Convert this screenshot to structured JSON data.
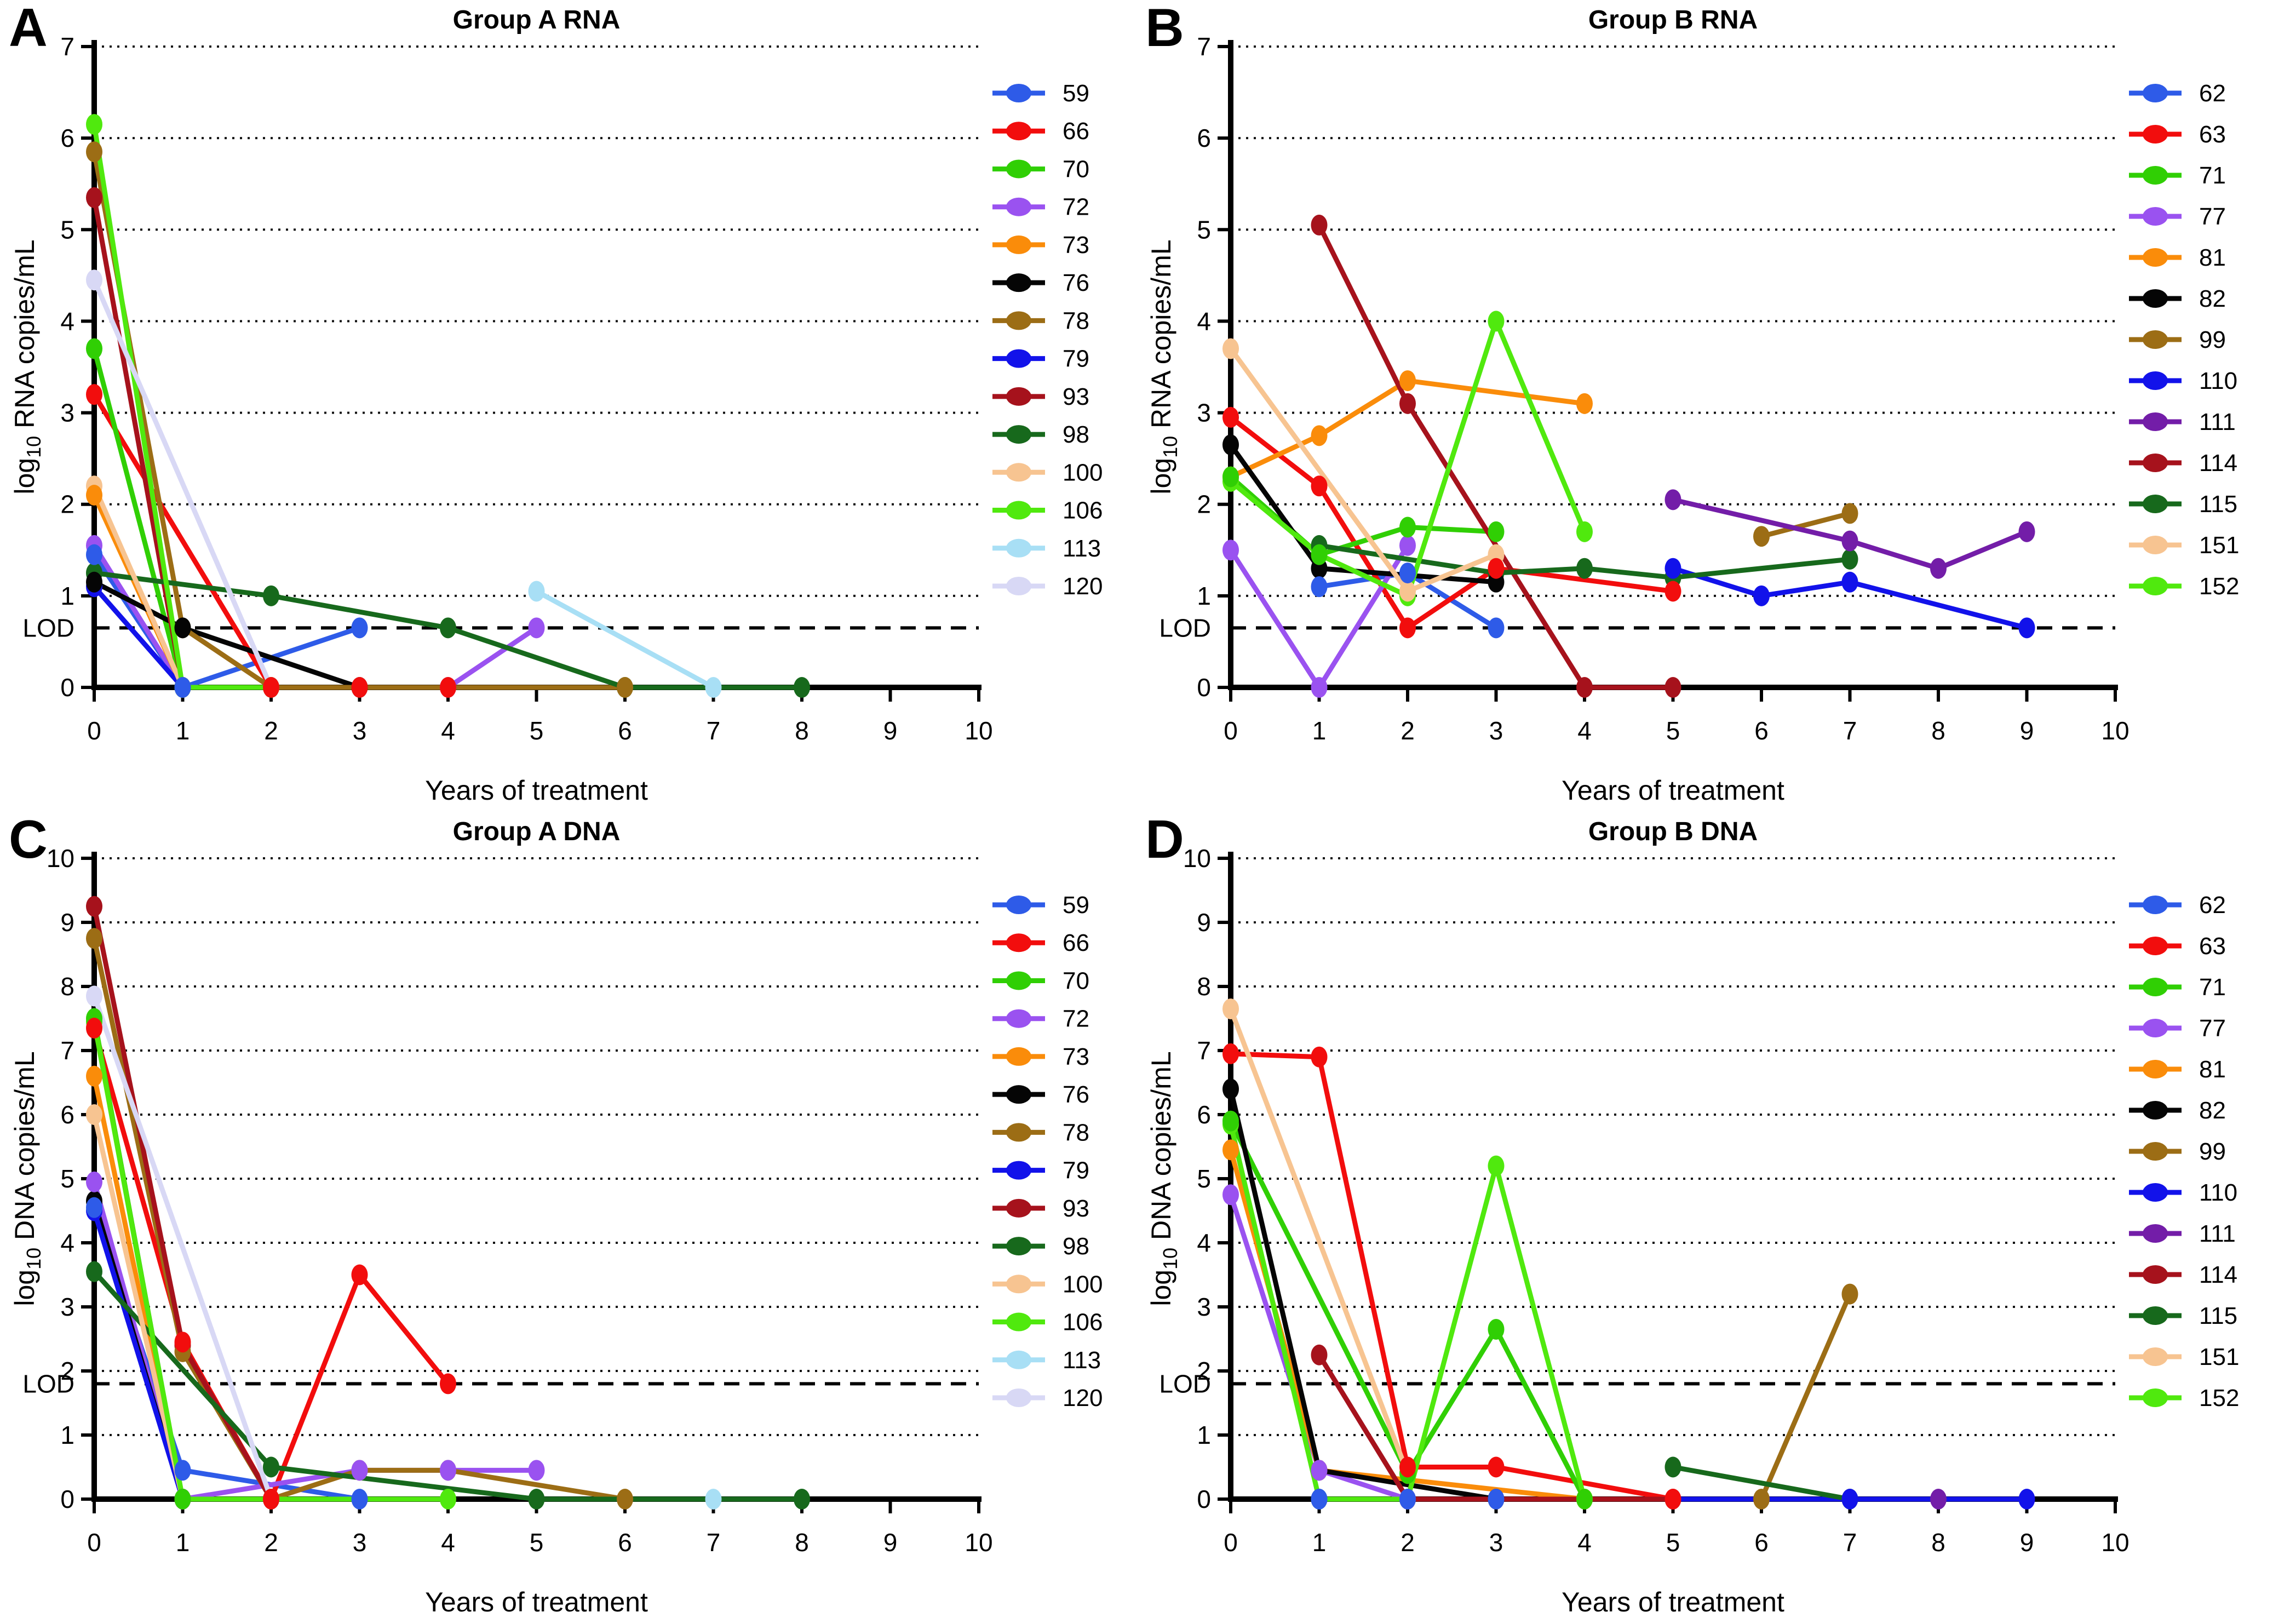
{
  "figure": {
    "lod_label": "LOD",
    "xlabel": "Years of treatment",
    "background": "#ffffff",
    "axis_color": "#000000"
  },
  "chart_data": [
    {
      "letter": "A",
      "title": "Group A RNA",
      "type": "line",
      "xlabel": "Years of treatment",
      "ylabel": {
        "prefix": "log",
        "sub": "10",
        "suffix": " RNA copies/mL"
      },
      "xlim": [
        0,
        10
      ],
      "ylim": [
        0,
        7
      ],
      "xticks": [
        0,
        1,
        2,
        3,
        4,
        5,
        6,
        7,
        8,
        9,
        10
      ],
      "yticks": [
        0,
        1,
        2,
        3,
        4,
        5,
        6,
        7
      ],
      "lod": 0.65,
      "grid": "dotted-horizontal",
      "legend_position": "right",
      "series": [
        {
          "name": "59",
          "color": "#2E5BE8",
          "points": [
            [
              0,
              1.45
            ],
            [
              1,
              0
            ],
            [
              3,
              0.65
            ]
          ]
        },
        {
          "name": "66",
          "color": "#F20D0D",
          "points": [
            [
              0,
              3.2
            ],
            [
              2,
              0
            ],
            [
              3,
              0
            ],
            [
              4,
              0
            ]
          ]
        },
        {
          "name": "70",
          "color": "#30CF04",
          "points": [
            [
              0,
              3.7
            ],
            [
              1,
              0
            ]
          ]
        },
        {
          "name": "72",
          "color": "#9A52F0",
          "points": [
            [
              0,
              1.55
            ],
            [
              1,
              0
            ],
            [
              4,
              0
            ],
            [
              5,
              0.65
            ]
          ]
        },
        {
          "name": "73",
          "color": "#FA8C0A",
          "points": [
            [
              0,
              2.1
            ],
            [
              1,
              0
            ]
          ]
        },
        {
          "name": "76",
          "color": "#050505",
          "points": [
            [
              0,
              1.15
            ],
            [
              1,
              0.65
            ],
            [
              3,
              0
            ]
          ]
        },
        {
          "name": "78",
          "color": "#9C6D15",
          "points": [
            [
              0,
              5.85
            ],
            [
              1,
              0.65
            ],
            [
              2,
              0
            ],
            [
              6,
              0
            ]
          ]
        },
        {
          "name": "79",
          "color": "#1212EA",
          "points": [
            [
              0,
              1.1
            ],
            [
              1,
              0
            ]
          ]
        },
        {
          "name": "93",
          "color": "#A6121C",
          "points": [
            [
              0,
              5.35
            ],
            [
              1,
              0
            ]
          ]
        },
        {
          "name": "98",
          "color": "#17691C",
          "points": [
            [
              0,
              1.25
            ],
            [
              2,
              1.0
            ],
            [
              4,
              0.65
            ],
            [
              6,
              0
            ],
            [
              8,
              0
            ]
          ]
        },
        {
          "name": "100",
          "color": "#F7C491",
          "points": [
            [
              0,
              2.2
            ],
            [
              1,
              0
            ]
          ]
        },
        {
          "name": "106",
          "color": "#50E90E",
          "points": [
            [
              0,
              6.15
            ],
            [
              1,
              0
            ],
            [
              2,
              0
            ]
          ]
        },
        {
          "name": "113",
          "color": "#A8DFF5",
          "points": [
            [
              5,
              1.05
            ],
            [
              7,
              0
            ]
          ]
        },
        {
          "name": "120",
          "color": "#D8D8F5",
          "points": [
            [
              0,
              4.45
            ],
            [
              2,
              0
            ]
          ]
        }
      ]
    },
    {
      "letter": "B",
      "title": "Group B RNA",
      "type": "line",
      "xlabel": "Years of treatment",
      "ylabel": {
        "prefix": "log",
        "sub": "10",
        "suffix": " RNA copies/mL"
      },
      "xlim": [
        0,
        10
      ],
      "ylim": [
        0,
        7
      ],
      "xticks": [
        0,
        1,
        2,
        3,
        4,
        5,
        6,
        7,
        8,
        9,
        10
      ],
      "yticks": [
        0,
        1,
        2,
        3,
        4,
        5,
        6,
        7
      ],
      "lod": 0.65,
      "grid": "dotted-horizontal",
      "legend_position": "right",
      "series": [
        {
          "name": "62",
          "color": "#2E5BE8",
          "points": [
            [
              1,
              1.1
            ],
            [
              2,
              1.25
            ],
            [
              3,
              0.65
            ]
          ]
        },
        {
          "name": "63",
          "color": "#F20D0D",
          "points": [
            [
              0,
              2.95
            ],
            [
              1,
              2.2
            ],
            [
              2,
              0.65
            ],
            [
              3,
              1.3
            ],
            [
              5,
              1.05
            ]
          ]
        },
        {
          "name": "71",
          "color": "#30CF04",
          "points": [
            [
              0,
              2.3
            ],
            [
              1,
              1.45
            ],
            [
              2,
              1.75
            ],
            [
              3,
              1.7
            ]
          ]
        },
        {
          "name": "77",
          "color": "#9A52F0",
          "points": [
            [
              0,
              1.5
            ],
            [
              1,
              0
            ],
            [
              2,
              1.55
            ]
          ]
        },
        {
          "name": "81",
          "color": "#FA8C0A",
          "points": [
            [
              0,
              2.3
            ],
            [
              1,
              2.75
            ],
            [
              2,
              3.35
            ],
            [
              4,
              3.1
            ]
          ]
        },
        {
          "name": "82",
          "color": "#050505",
          "points": [
            [
              0,
              2.65
            ],
            [
              1,
              1.3
            ],
            [
              3,
              1.15
            ]
          ]
        },
        {
          "name": "99",
          "color": "#9C6D15",
          "points": [
            [
              6,
              1.65
            ],
            [
              7,
              1.9
            ]
          ]
        },
        {
          "name": "110",
          "color": "#1212EA",
          "points": [
            [
              5,
              1.3
            ],
            [
              6,
              1.0
            ],
            [
              7,
              1.15
            ],
            [
              9,
              0.65
            ]
          ]
        },
        {
          "name": "111",
          "color": "#731DA8",
          "points": [
            [
              5,
              2.05
            ],
            [
              7,
              1.6
            ],
            [
              8,
              1.3
            ],
            [
              9,
              1.7
            ]
          ]
        },
        {
          "name": "114",
          "color": "#A6121C",
          "points": [
            [
              1,
              5.05
            ],
            [
              2,
              3.1
            ],
            [
              4,
              0
            ],
            [
              5,
              0
            ]
          ]
        },
        {
          "name": "115",
          "color": "#17691C",
          "points": [
            [
              1,
              1.55
            ],
            [
              3,
              1.25
            ],
            [
              4,
              1.3
            ],
            [
              5,
              1.2
            ],
            [
              7,
              1.4
            ]
          ]
        },
        {
          "name": "151",
          "color": "#F7C491",
          "points": [
            [
              0,
              3.7
            ],
            [
              2,
              1.05
            ],
            [
              3,
              1.45
            ]
          ]
        },
        {
          "name": "152",
          "color": "#50E90E",
          "points": [
            [
              0,
              2.25
            ],
            [
              1,
              1.45
            ],
            [
              2,
              1.0
            ],
            [
              3,
              4.0
            ],
            [
              4,
              1.7
            ]
          ]
        }
      ]
    },
    {
      "letter": "C",
      "title": "Group A DNA",
      "type": "line",
      "xlabel": "Years of treatment",
      "ylabel": {
        "prefix": "log",
        "sub": "10",
        "suffix": " DNA copies/mL"
      },
      "xlim": [
        0,
        10
      ],
      "ylim": [
        0,
        10
      ],
      "xticks": [
        0,
        1,
        2,
        3,
        4,
        5,
        6,
        7,
        8,
        9,
        10
      ],
      "yticks": [
        0,
        1,
        2,
        3,
        4,
        5,
        6,
        7,
        8,
        9,
        10
      ],
      "lod": 1.8,
      "grid": "dotted-horizontal",
      "legend_position": "right",
      "series": [
        {
          "name": "59",
          "color": "#2E5BE8",
          "points": [
            [
              0,
              4.55
            ],
            [
              1,
              0.45
            ],
            [
              3,
              0
            ]
          ]
        },
        {
          "name": "66",
          "color": "#F20D0D",
          "points": [
            [
              0,
              7.35
            ],
            [
              1,
              2.45
            ],
            [
              2,
              0
            ],
            [
              3,
              3.5
            ],
            [
              4,
              1.8
            ]
          ]
        },
        {
          "name": "70",
          "color": "#30CF04",
          "points": [
            [
              0,
              7.5
            ],
            [
              1,
              0
            ]
          ]
        },
        {
          "name": "72",
          "color": "#9A52F0",
          "points": [
            [
              0,
              4.95
            ],
            [
              1,
              0
            ],
            [
              3,
              0.45
            ],
            [
              4,
              0.45
            ],
            [
              5,
              0.45
            ]
          ]
        },
        {
          "name": "73",
          "color": "#FA8C0A",
          "points": [
            [
              0,
              6.6
            ],
            [
              1,
              0
            ]
          ]
        },
        {
          "name": "76",
          "color": "#050505",
          "points": [
            [
              0,
              4.65
            ],
            [
              1,
              0
            ]
          ]
        },
        {
          "name": "78",
          "color": "#9C6D15",
          "points": [
            [
              0,
              8.75
            ],
            [
              1,
              2.3
            ],
            [
              2,
              0
            ],
            [
              3,
              0.45
            ],
            [
              4,
              0.45
            ],
            [
              6,
              0
            ]
          ]
        },
        {
          "name": "79",
          "color": "#1212EA",
          "points": [
            [
              0,
              4.5
            ],
            [
              1,
              0
            ]
          ]
        },
        {
          "name": "93",
          "color": "#A6121C",
          "points": [
            [
              0,
              9.25
            ],
            [
              1,
              2.4
            ],
            [
              2,
              0
            ]
          ]
        },
        {
          "name": "98",
          "color": "#17691C",
          "points": [
            [
              0,
              3.55
            ],
            [
              2,
              0.5
            ],
            [
              5,
              0
            ],
            [
              8,
              0
            ]
          ]
        },
        {
          "name": "100",
          "color": "#F7C491",
          "points": [
            [
              0,
              6.0
            ],
            [
              1,
              0
            ]
          ]
        },
        {
          "name": "106",
          "color": "#50E90E",
          "points": [
            [
              0,
              7.45
            ],
            [
              1,
              0
            ],
            [
              4,
              0
            ]
          ]
        },
        {
          "name": "113",
          "color": "#A8DFF5",
          "points": [
            [
              7,
              0
            ]
          ]
        },
        {
          "name": "120",
          "color": "#D8D8F5",
          "points": [
            [
              0,
              7.85
            ],
            [
              2,
              0
            ]
          ]
        }
      ]
    },
    {
      "letter": "D",
      "title": "Group B DNA",
      "type": "line",
      "xlabel": "Years of treatment",
      "ylabel": {
        "prefix": "log",
        "sub": "10",
        "suffix": " DNA copies/mL"
      },
      "xlim": [
        0,
        10
      ],
      "ylim": [
        0,
        10
      ],
      "xticks": [
        0,
        1,
        2,
        3,
        4,
        5,
        6,
        7,
        8,
        9,
        10
      ],
      "yticks": [
        0,
        1,
        2,
        3,
        4,
        5,
        6,
        7,
        8,
        9,
        10
      ],
      "lod": 1.8,
      "grid": "dotted-horizontal",
      "legend_position": "right",
      "series": [
        {
          "name": "62",
          "color": "#2E5BE8",
          "points": [
            [
              1,
              0
            ],
            [
              2,
              0
            ],
            [
              3,
              0
            ]
          ]
        },
        {
          "name": "63",
          "color": "#F20D0D",
          "points": [
            [
              0,
              6.95
            ],
            [
              1,
              6.9
            ],
            [
              2,
              0.5
            ],
            [
              3,
              0.5
            ],
            [
              5,
              0
            ]
          ]
        },
        {
          "name": "71",
          "color": "#30CF04",
          "points": [
            [
              0,
              5.9
            ],
            [
              2,
              0.4
            ],
            [
              3,
              2.65
            ],
            [
              4,
              0
            ]
          ]
        },
        {
          "name": "77",
          "color": "#9A52F0",
          "points": [
            [
              0,
              4.75
            ],
            [
              1,
              0.45
            ],
            [
              2,
              0
            ]
          ]
        },
        {
          "name": "81",
          "color": "#FA8C0A",
          "points": [
            [
              0,
              5.45
            ],
            [
              1,
              0.45
            ],
            [
              4,
              0
            ]
          ]
        },
        {
          "name": "82",
          "color": "#050505",
          "points": [
            [
              0,
              6.4
            ],
            [
              1,
              0.45
            ],
            [
              3,
              0
            ]
          ]
        },
        {
          "name": "99",
          "color": "#9C6D15",
          "points": [
            [
              6,
              0
            ],
            [
              7,
              3.2
            ]
          ]
        },
        {
          "name": "110",
          "color": "#1212EA",
          "points": [
            [
              1,
              0
            ],
            [
              7,
              0
            ],
            [
              9,
              0
            ]
          ]
        },
        {
          "name": "111",
          "color": "#731DA8",
          "points": [
            [
              8,
              0
            ]
          ]
        },
        {
          "name": "114",
          "color": "#A6121C",
          "points": [
            [
              1,
              2.25
            ],
            [
              2,
              0
            ],
            [
              5,
              0
            ]
          ]
        },
        {
          "name": "115",
          "color": "#17691C",
          "points": [
            [
              5,
              0.5
            ],
            [
              7,
              0
            ]
          ]
        },
        {
          "name": "151",
          "color": "#F7C491",
          "points": [
            [
              0,
              7.65
            ],
            [
              2,
              0.4
            ]
          ]
        },
        {
          "name": "152",
          "color": "#50E90E",
          "points": [
            [
              0,
              5.85
            ],
            [
              1,
              0
            ],
            [
              2,
              0
            ],
            [
              3,
              5.2
            ],
            [
              4,
              0
            ]
          ]
        }
      ]
    }
  ]
}
